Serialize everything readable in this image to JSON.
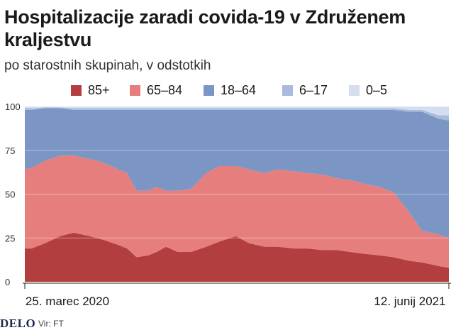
{
  "title": "Hospitalizacije zaradi covida-19 v Združenem kraljestvu",
  "subtitle": "po starostnih skupinah, v odstotkih",
  "footer": {
    "brand": "DELO",
    "source": "Vir: FT"
  },
  "colors": {
    "85+": "#b23e3f",
    "65-84": "#e67e7e",
    "18-64": "#7b96c4",
    "6-17": "#a9bbdc",
    "0-5": "#d5deee"
  },
  "chart_data": {
    "type": "area",
    "stacked": true,
    "title": "Hospitalizacije zaradi covida-19 v Združenem kraljestvu",
    "subtitle": "po starostnih skupinah, v odstotkih",
    "x_range": [
      "2020-03-25",
      "2021-06-12"
    ],
    "x_tick_labels": [
      "25. marec 2020",
      "12. junij 2021"
    ],
    "ylim": [
      0,
      100
    ],
    "y_ticks": [
      0,
      25,
      50,
      75,
      100
    ],
    "grid": true,
    "legend_position": "top",
    "x": [
      "2020-03-25",
      "2020-04-01",
      "2020-04-15",
      "2020-05-01",
      "2020-05-15",
      "2020-06-01",
      "2020-06-15",
      "2020-07-01",
      "2020-07-10",
      "2020-07-20",
      "2020-08-01",
      "2020-08-10",
      "2020-08-20",
      "2020-09-01",
      "2020-09-15",
      "2020-10-01",
      "2020-10-15",
      "2020-11-01",
      "2020-11-15",
      "2020-12-01",
      "2020-12-15",
      "2021-01-01",
      "2021-01-15",
      "2021-02-01",
      "2021-02-15",
      "2021-03-01",
      "2021-03-15",
      "2021-04-01",
      "2021-04-15",
      "2021-05-01",
      "2021-05-15",
      "2021-06-01",
      "2021-06-12"
    ],
    "series": [
      {
        "name": "85+",
        "values": [
          19,
          19,
          22,
          26,
          28,
          26,
          24,
          21,
          19,
          14,
          15,
          17,
          20,
          17,
          17,
          20,
          23,
          26,
          22,
          20,
          20,
          19,
          19,
          18,
          18,
          17,
          16,
          15,
          14,
          12,
          11,
          9,
          8
        ]
      },
      {
        "name": "65–84",
        "values": [
          45,
          46,
          47,
          46,
          44,
          44,
          44,
          43,
          43,
          38,
          37,
          37,
          32,
          35,
          36,
          42,
          43,
          40,
          42,
          42,
          44,
          44,
          43,
          43,
          41,
          41,
          40,
          39,
          37,
          28,
          18,
          18,
          17
        ]
      },
      {
        "name": "18–64",
        "values": [
          34,
          33,
          30,
          27,
          26,
          28,
          30,
          34,
          36,
          46,
          46,
          44,
          46,
          46,
          45,
          36,
          32,
          32,
          34,
          36,
          34,
          35,
          36,
          37,
          39,
          40,
          42,
          44,
          47,
          57,
          68,
          66,
          67
        ]
      },
      {
        "name": "6–17",
        "values": [
          1,
          1,
          0.5,
          0.5,
          1,
          1,
          1,
          1,
          1,
          1,
          1,
          1,
          1,
          1,
          1,
          1,
          1,
          1,
          1,
          1,
          1,
          1,
          1,
          1,
          1,
          1,
          1,
          1,
          1,
          1,
          1,
          2,
          3
        ]
      },
      {
        "name": "0–5",
        "values": [
          1,
          1,
          0.5,
          0.5,
          1,
          1,
          1,
          1,
          1,
          1,
          1,
          1,
          1,
          1,
          1,
          1,
          1,
          1,
          1,
          1,
          1,
          1,
          1,
          1,
          1,
          1,
          1,
          1,
          1,
          2,
          2,
          5,
          5
        ]
      }
    ]
  }
}
